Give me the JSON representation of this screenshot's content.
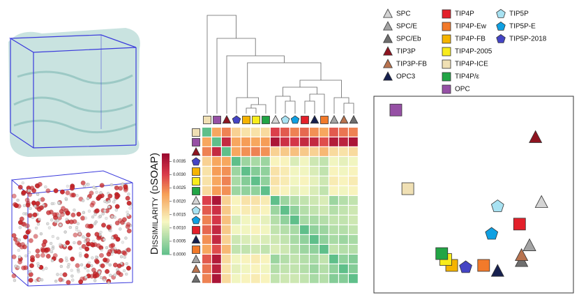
{
  "chart_data": [
    {
      "type": "heatmap",
      "categories": [
        "TIP4P-ICE",
        "OPC",
        "TIP3P",
        "TIP5P-2018",
        "TIP4P-FB",
        "TIP4P-2005",
        "TIP4P/ε",
        "SPC",
        "TIP5P",
        "TIP5P-E",
        "TIP4P",
        "OPC3",
        "TIP4P-Ew",
        "SPC/E",
        "TIP3P-FB",
        "SPC/Eb"
      ],
      "values": [
        [
          0,
          0.0022,
          0.0025,
          0.0017,
          0.0015,
          0.0015,
          0.0016,
          0.003,
          0.0028,
          0.0025,
          0.0027,
          0.0024,
          0.0022,
          0.0028,
          0.0026,
          0.0025
        ],
        [
          0.0022,
          0,
          0.0033,
          0.0022,
          0.0023,
          0.0022,
          0.0023,
          0.0036,
          0.0032,
          0.0031,
          0.0033,
          0.0033,
          0.0029,
          0.0035,
          0.0034,
          0.0036
        ],
        [
          0.0025,
          0.0033,
          0,
          0.0022,
          0.0024,
          0.0025,
          0.0024,
          0.0017,
          0.0018,
          0.0019,
          0.0018,
          0.0017,
          0.002,
          0.0016,
          0.0015,
          0.0016
        ],
        [
          0.0017,
          0.0022,
          0.0022,
          0,
          0.0005,
          0.0006,
          0.0005,
          0.0013,
          0.0013,
          0.001,
          0.0012,
          0.0009,
          0.0008,
          0.0012,
          0.0011,
          0.0012
        ],
        [
          0.0015,
          0.0023,
          0.0024,
          0.0005,
          0,
          0.0003,
          0.0004,
          0.0015,
          0.0014,
          0.0012,
          0.0012,
          0.001,
          0.0008,
          0.0013,
          0.0012,
          0.0013
        ],
        [
          0.0015,
          0.0022,
          0.0025,
          0.0006,
          0.0003,
          0,
          0.0004,
          0.0015,
          0.0014,
          0.0012,
          0.0013,
          0.0011,
          0.0009,
          0.0014,
          0.0013,
          0.0014
        ],
        [
          0.0016,
          0.0023,
          0.0024,
          0.0005,
          0.0004,
          0.0004,
          0,
          0.0014,
          0.0013,
          0.0011,
          0.0012,
          0.001,
          0.0008,
          0.0013,
          0.0012,
          0.0013
        ],
        [
          0.003,
          0.0036,
          0.0017,
          0.0013,
          0.0015,
          0.0015,
          0.0014,
          0,
          0.0005,
          0.0007,
          0.0008,
          0.0009,
          0.001,
          0.0005,
          0.0007,
          0.0008
        ],
        [
          0.0028,
          0.0032,
          0.0018,
          0.0013,
          0.0014,
          0.0014,
          0.0013,
          0.0005,
          0,
          0.0004,
          0.0007,
          0.0008,
          0.0009,
          0.0007,
          0.0008,
          0.0009
        ],
        [
          0.0025,
          0.0031,
          0.0019,
          0.001,
          0.0012,
          0.0012,
          0.0011,
          0.0007,
          0.0004,
          0,
          0.0006,
          0.0006,
          0.0007,
          0.0008,
          0.0008,
          0.0009
        ],
        [
          0.0027,
          0.0033,
          0.0018,
          0.0012,
          0.0012,
          0.0013,
          0.0012,
          0.0008,
          0.0007,
          0.0006,
          0,
          0.0004,
          0.0005,
          0.0007,
          0.0007,
          0.0008
        ],
        [
          0.0024,
          0.0033,
          0.0017,
          0.0009,
          0.001,
          0.0011,
          0.001,
          0.0009,
          0.0008,
          0.0006,
          0.0004,
          0,
          0.0004,
          0.0006,
          0.0005,
          0.0006
        ],
        [
          0.0022,
          0.0029,
          0.002,
          0.0008,
          0.0008,
          0.0009,
          0.0008,
          0.001,
          0.0009,
          0.0007,
          0.0005,
          0.0004,
          0,
          0.0008,
          0.0007,
          0.0007
        ],
        [
          0.0028,
          0.0035,
          0.0016,
          0.0012,
          0.0013,
          0.0014,
          0.0013,
          0.0005,
          0.0007,
          0.0008,
          0.0007,
          0.0006,
          0.0008,
          0,
          0.0004,
          0.0003
        ],
        [
          0.0026,
          0.0034,
          0.0015,
          0.0011,
          0.0012,
          0.0013,
          0.0012,
          0.0007,
          0.0008,
          0.0008,
          0.0007,
          0.0005,
          0.0007,
          0.0004,
          0,
          0.0003
        ],
        [
          0.0025,
          0.0036,
          0.0016,
          0.0012,
          0.0013,
          0.0014,
          0.0013,
          0.0008,
          0.0009,
          0.0009,
          0.0008,
          0.0006,
          0.0007,
          0.0003,
          0.0003,
          0
        ]
      ],
      "colorbar_label": "Dissimilarity (dSOAP)",
      "zlim": [
        0,
        0.0038
      ],
      "zticks": [
        {
          "value": 0,
          "label": "0.0000"
        },
        {
          "value": 0.0005,
          "label": "0.0005"
        },
        {
          "value": 0.001,
          "label": "0.0010"
        },
        {
          "value": 0.0015,
          "label": "0.0015"
        },
        {
          "value": 0.002,
          "label": "0.0020"
        },
        {
          "value": 0.0025,
          "label": "0.0025"
        },
        {
          "value": 0.003,
          "label": "0.0030"
        },
        {
          "value": 0.0035,
          "label": "0.0035"
        }
      ]
    },
    {
      "type": "scatter",
      "xlim": [
        0,
        100
      ],
      "ylim": [
        0,
        100
      ],
      "series": [
        {
          "name": "SPC",
          "color": "#d4d4d4",
          "marker": "triangle",
          "x": [
            84
          ],
          "values": [
            46
          ]
        },
        {
          "name": "SPC/E",
          "color": "#a3a3a3",
          "marker": "triangle",
          "x": [
            78
          ],
          "values": [
            24
          ]
        },
        {
          "name": "SPC/Eb",
          "color": "#6e6e6e",
          "marker": "triangle",
          "x": [
            74
          ],
          "values": [
            16
          ]
        },
        {
          "name": "TIP3P",
          "color": "#8e1420",
          "marker": "triangle",
          "x": [
            81
          ],
          "values": [
            79
          ]
        },
        {
          "name": "TIP3P-FB",
          "color": "#b8734f",
          "marker": "triangle",
          "x": [
            74
          ],
          "values": [
            19
          ]
        },
        {
          "name": "OPC3",
          "color": "#16204f",
          "marker": "triangle",
          "x": [
            62
          ],
          "values": [
            11
          ]
        },
        {
          "name": "TIP4P",
          "color": "#e3202a",
          "marker": "square",
          "x": [
            73
          ],
          "values": [
            35
          ]
        },
        {
          "name": "TIP4P-Ew",
          "color": "#f27a2a",
          "marker": "square",
          "x": [
            55
          ],
          "values": [
            14
          ]
        },
        {
          "name": "TIP4P-FB",
          "color": "#f5b400",
          "marker": "square",
          "x": [
            39
          ],
          "values": [
            14
          ]
        },
        {
          "name": "TIP4P-2005",
          "color": "#f8ec1c",
          "marker": "square",
          "x": [
            36
          ],
          "values": [
            17
          ]
        },
        {
          "name": "TIP4P-ICE",
          "color": "#f0e0b4",
          "marker": "square",
          "x": [
            17
          ],
          "values": [
            53
          ]
        },
        {
          "name": "TIP4P/ε",
          "color": "#22a545",
          "marker": "square",
          "x": [
            34
          ],
          "values": [
            20
          ]
        },
        {
          "name": "OPC",
          "color": "#9650a5",
          "marker": "square",
          "x": [
            11
          ],
          "values": [
            93
          ]
        },
        {
          "name": "TIP5P",
          "color": "#a8e2f2",
          "marker": "pentagon",
          "x": [
            62
          ],
          "values": [
            44
          ]
        },
        {
          "name": "TIP5P-E",
          "color": "#0fa0e2",
          "marker": "pentagon",
          "x": [
            59
          ],
          "values": [
            30
          ]
        },
        {
          "name": "TIP5P-2018",
          "color": "#4444c4",
          "marker": "pentagon",
          "x": [
            46
          ],
          "values": [
            13
          ]
        }
      ]
    }
  ]
}
